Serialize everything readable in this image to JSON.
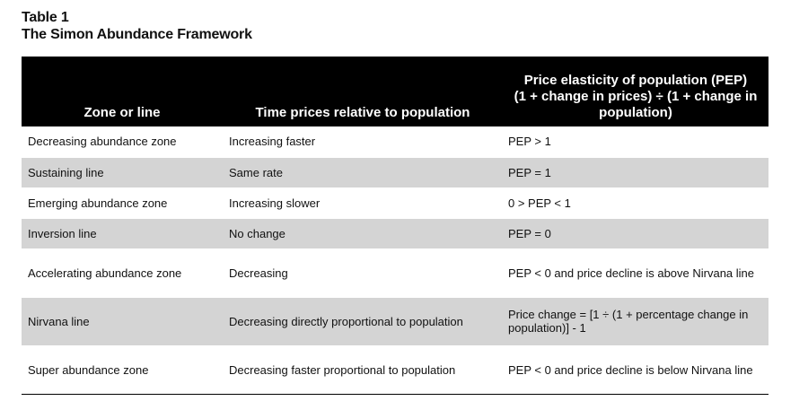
{
  "caption": {
    "label": "Table 1",
    "title": "The Simon Abundance Framework"
  },
  "table": {
    "headers": {
      "zone": "Zone or line",
      "time_prices": "Time prices relative to population",
      "pep_title": "Price elasticity of population (PEP)",
      "pep_formula": "(1 + change in prices) ÷ (1 + change in population)"
    },
    "rows": [
      {
        "zone": "Decreasing abundance zone",
        "time_prices": "Increasing faster",
        "pep": "PEP > 1"
      },
      {
        "zone": "Sustaining line",
        "time_prices": "Same rate",
        "pep": "PEP = 1"
      },
      {
        "zone": "Emerging abundance zone",
        "time_prices": "Increasing slower",
        "pep": "0 > PEP < 1"
      },
      {
        "zone": "Inversion line",
        "time_prices": "No change",
        "pep": "PEP = 0"
      },
      {
        "zone": "Accelerating abundance zone",
        "time_prices": "Decreasing",
        "pep": "PEP < 0 and price decline is above Nirvana line"
      },
      {
        "zone": "Nirvana line",
        "time_prices": "Decreasing directly proportional to population",
        "pep": "Price change = [1 ÷ (1 + percentage change in population)] - 1"
      },
      {
        "zone": "Super abundance zone",
        "time_prices": "Decreasing faster proportional to population",
        "pep": "PEP < 0 and price decline is below Nirvana line"
      }
    ]
  }
}
